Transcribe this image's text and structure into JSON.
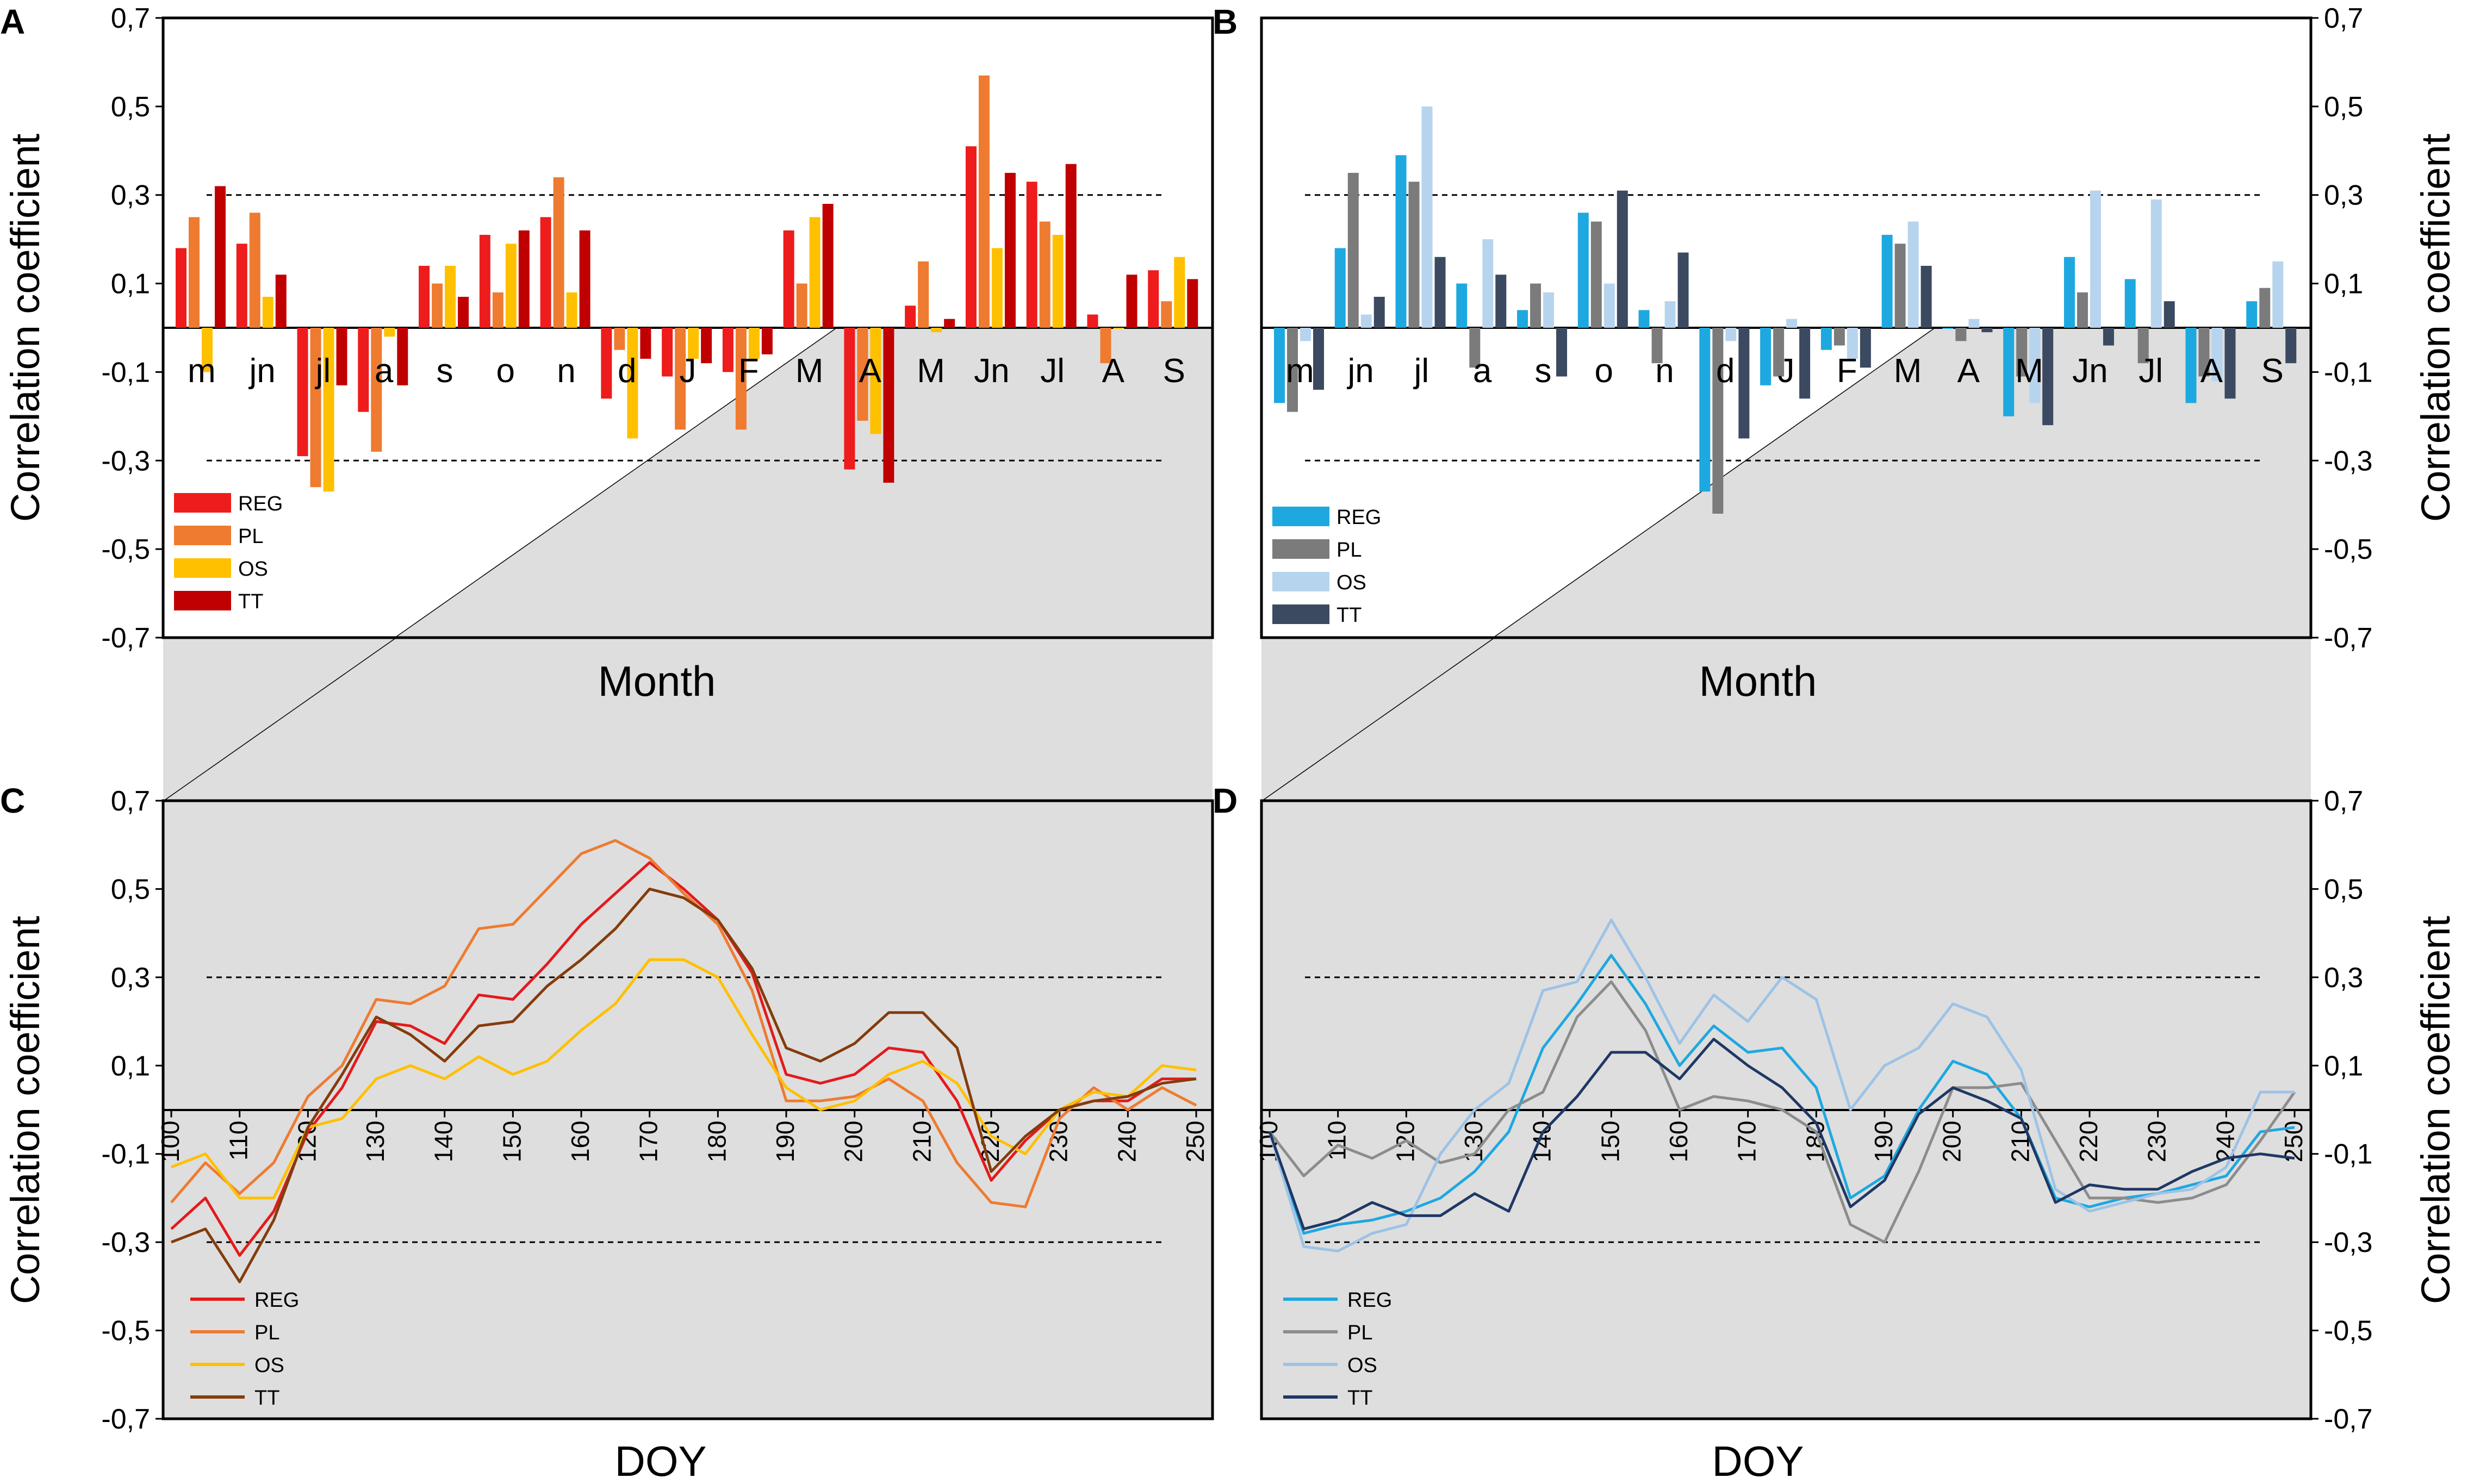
{
  "colors": {
    "warm": {
      "REG": "#ee1c1c",
      "PL": "#ee7b30",
      "OS": "#ffc000",
      "TT": "#c00000"
    },
    "warm_line": {
      "REG": "#e41a1c",
      "PL": "#ee7b30",
      "OS": "#ffc000",
      "TT": "#843c0c"
    },
    "cool": {
      "REG": "#1ea8e0",
      "PL": "#7b7b7b",
      "OS": "#b7d4ee",
      "TT": "#3b4a60"
    },
    "cool_line": {
      "REG": "#1ea8e0",
      "PL": "#8c8c8c",
      "OS": "#9dc3e6",
      "TT": "#1f3864"
    },
    "shade": "#dedede"
  },
  "shared": {
    "y_ticks": [
      "0,7",
      "0,5",
      "0,3",
      "0,1",
      "-0,1",
      "-0,3",
      "-0,5",
      "-0,7"
    ],
    "ylim": [
      -0.7,
      0.7
    ],
    "threshold": 0.3,
    "series_names": [
      "REG",
      "PL",
      "OS",
      "TT"
    ]
  },
  "chart_data": [
    {
      "panel": "A",
      "type": "bar",
      "xlabel": "Month",
      "ylabel": "Correlation coefficient",
      "categories": [
        "m",
        "jn",
        "jl",
        "a",
        "s",
        "o",
        "n",
        "d",
        "J",
        "F",
        "M",
        "A",
        "M",
        "Jn",
        "Jl",
        "A",
        "S"
      ],
      "series": [
        {
          "name": "REG",
          "values": [
            0.18,
            0.19,
            -0.29,
            -0.19,
            0.14,
            0.21,
            0.25,
            -0.16,
            -0.11,
            -0.1,
            0.22,
            -0.32,
            0.05,
            0.41,
            0.33,
            0.03,
            0.13
          ]
        },
        {
          "name": "PL",
          "values": [
            0.25,
            0.26,
            -0.36,
            -0.28,
            0.1,
            0.08,
            0.34,
            -0.05,
            -0.23,
            -0.23,
            0.1,
            -0.21,
            0.15,
            0.57,
            0.24,
            -0.08,
            0.06
          ]
        },
        {
          "name": "OS",
          "values": [
            -0.1,
            0.07,
            -0.37,
            -0.02,
            0.14,
            0.19,
            0.08,
            -0.25,
            -0.07,
            -0.07,
            0.25,
            -0.24,
            -0.01,
            0.18,
            0.21,
            0.0,
            0.16
          ]
        },
        {
          "name": "TT",
          "values": [
            0.32,
            0.12,
            -0.13,
            -0.13,
            0.07,
            0.22,
            0.22,
            -0.07,
            -0.08,
            -0.06,
            0.28,
            -0.35,
            0.02,
            0.35,
            0.37,
            0.12,
            0.11
          ]
        }
      ]
    },
    {
      "panel": "B",
      "type": "bar",
      "xlabel": "Month",
      "ylabel": "Correlation coefficient",
      "categories": [
        "m",
        "jn",
        "jl",
        "a",
        "s",
        "o",
        "n",
        "d",
        "J",
        "F",
        "M",
        "A",
        "M",
        "Jn",
        "Jl",
        "A",
        "S"
      ],
      "series": [
        {
          "name": "REG",
          "values": [
            -0.17,
            0.18,
            0.39,
            0.1,
            0.04,
            0.26,
            0.04,
            -0.37,
            -0.13,
            -0.05,
            0.21,
            0.0,
            -0.2,
            0.16,
            0.11,
            -0.17,
            0.06
          ]
        },
        {
          "name": "PL",
          "values": [
            -0.19,
            0.35,
            0.33,
            -0.09,
            0.1,
            0.24,
            -0.08,
            -0.42,
            -0.11,
            -0.04,
            0.19,
            -0.03,
            -0.11,
            0.08,
            -0.08,
            -0.11,
            0.09
          ]
        },
        {
          "name": "OS",
          "values": [
            -0.03,
            0.03,
            0.5,
            0.2,
            0.08,
            0.1,
            0.06,
            -0.03,
            0.02,
            -0.07,
            0.24,
            0.02,
            -0.17,
            0.31,
            0.29,
            -0.12,
            0.15
          ]
        },
        {
          "name": "TT",
          "values": [
            -0.14,
            0.07,
            0.16,
            0.12,
            -0.11,
            0.31,
            0.17,
            -0.25,
            -0.16,
            -0.09,
            0.14,
            -0.01,
            -0.22,
            -0.04,
            0.06,
            -0.16,
            -0.08
          ]
        }
      ]
    },
    {
      "panel": "C",
      "type": "line",
      "xlabel": "DOY",
      "ylabel": "Correlation coefficient",
      "xlim": [
        100,
        250
      ],
      "x_ticks": [
        "100",
        "110",
        "120",
        "130",
        "140",
        "150",
        "160",
        "170",
        "180",
        "190",
        "200",
        "210",
        "220",
        "230",
        "240",
        "250"
      ],
      "x": [
        100,
        105,
        110,
        115,
        120,
        125,
        130,
        135,
        140,
        145,
        150,
        155,
        160,
        165,
        170,
        175,
        180,
        185,
        190,
        195,
        200,
        205,
        210,
        215,
        220,
        225,
        230,
        235,
        240,
        245,
        250
      ],
      "series": [
        {
          "name": "REG",
          "values": [
            -0.27,
            -0.2,
            -0.33,
            -0.23,
            -0.05,
            0.05,
            0.2,
            0.19,
            0.15,
            0.26,
            0.25,
            0.33,
            0.42,
            0.49,
            0.56,
            0.5,
            0.43,
            0.31,
            0.08,
            0.06,
            0.08,
            0.14,
            0.13,
            0.02,
            -0.16,
            -0.07,
            0.0,
            0.02,
            0.02,
            0.07,
            0.07
          ]
        },
        {
          "name": "PL",
          "values": [
            -0.21,
            -0.12,
            -0.19,
            -0.12,
            0.03,
            0.1,
            0.25,
            0.24,
            0.28,
            0.41,
            0.42,
            0.5,
            0.58,
            0.61,
            0.57,
            0.49,
            0.42,
            0.27,
            0.02,
            0.02,
            0.03,
            0.07,
            0.02,
            -0.12,
            -0.21,
            -0.22,
            -0.02,
            0.05,
            0.0,
            0.05,
            0.01
          ]
        },
        {
          "name": "OS",
          "values": [
            -0.13,
            -0.1,
            -0.2,
            -0.2,
            -0.04,
            -0.02,
            0.07,
            0.1,
            0.07,
            0.12,
            0.08,
            0.11,
            0.18,
            0.24,
            0.34,
            0.34,
            0.3,
            0.17,
            0.05,
            0.0,
            0.02,
            0.08,
            0.11,
            0.06,
            -0.06,
            -0.1,
            0.0,
            0.04,
            0.03,
            0.1,
            0.09
          ]
        },
        {
          "name": "TT",
          "values": [
            -0.3,
            -0.27,
            -0.39,
            -0.25,
            -0.04,
            0.08,
            0.21,
            0.17,
            0.11,
            0.19,
            0.2,
            0.28,
            0.34,
            0.41,
            0.5,
            0.48,
            0.43,
            0.32,
            0.14,
            0.11,
            0.15,
            0.22,
            0.22,
            0.14,
            -0.14,
            -0.06,
            0.0,
            0.02,
            0.03,
            0.06,
            0.07
          ]
        }
      ]
    },
    {
      "panel": "D",
      "type": "line",
      "xlabel": "DOY",
      "ylabel": "Correlation coefficient",
      "xlim": [
        100,
        250
      ],
      "x_ticks": [
        "100",
        "110",
        "120",
        "130",
        "140",
        "150",
        "160",
        "170",
        "180",
        "190",
        "200",
        "210",
        "220",
        "230",
        "240",
        "250"
      ],
      "x": [
        100,
        105,
        110,
        115,
        120,
        125,
        130,
        135,
        140,
        145,
        150,
        155,
        160,
        165,
        170,
        175,
        180,
        185,
        190,
        195,
        200,
        205,
        210,
        215,
        220,
        225,
        230,
        235,
        240,
        245,
        250
      ],
      "series": [
        {
          "name": "REG",
          "values": [
            -0.05,
            -0.28,
            -0.26,
            -0.25,
            -0.23,
            -0.2,
            -0.14,
            -0.05,
            0.14,
            0.24,
            0.35,
            0.24,
            0.1,
            0.19,
            0.13,
            0.14,
            0.05,
            -0.2,
            -0.15,
            0.0,
            0.11,
            0.08,
            -0.02,
            -0.2,
            -0.22,
            -0.2,
            -0.19,
            -0.17,
            -0.15,
            -0.05,
            -0.04
          ]
        },
        {
          "name": "PL",
          "values": [
            -0.05,
            -0.15,
            -0.08,
            -0.11,
            -0.07,
            -0.12,
            -0.1,
            0.0,
            0.04,
            0.21,
            0.29,
            0.18,
            0.0,
            0.03,
            0.02,
            0.0,
            -0.05,
            -0.26,
            -0.3,
            -0.14,
            0.05,
            0.05,
            0.06,
            -0.07,
            -0.2,
            -0.2,
            -0.21,
            -0.2,
            -0.17,
            -0.07,
            0.04
          ]
        },
        {
          "name": "OS",
          "values": [
            -0.05,
            -0.31,
            -0.32,
            -0.28,
            -0.26,
            -0.1,
            0.0,
            0.06,
            0.27,
            0.29,
            0.43,
            0.3,
            0.15,
            0.26,
            0.2,
            0.3,
            0.25,
            0.0,
            0.1,
            0.14,
            0.24,
            0.21,
            0.09,
            -0.18,
            -0.23,
            -0.21,
            -0.19,
            -0.18,
            -0.13,
            0.04,
            0.04
          ]
        },
        {
          "name": "TT",
          "values": [
            -0.05,
            -0.27,
            -0.25,
            -0.21,
            -0.24,
            -0.24,
            -0.19,
            -0.23,
            -0.05,
            0.03,
            0.13,
            0.13,
            0.07,
            0.16,
            0.1,
            0.05,
            -0.03,
            -0.22,
            -0.16,
            -0.01,
            0.05,
            0.02,
            -0.02,
            -0.21,
            -0.17,
            -0.18,
            -0.18,
            -0.14,
            -0.11,
            -0.1,
            -0.11
          ]
        }
      ]
    }
  ]
}
